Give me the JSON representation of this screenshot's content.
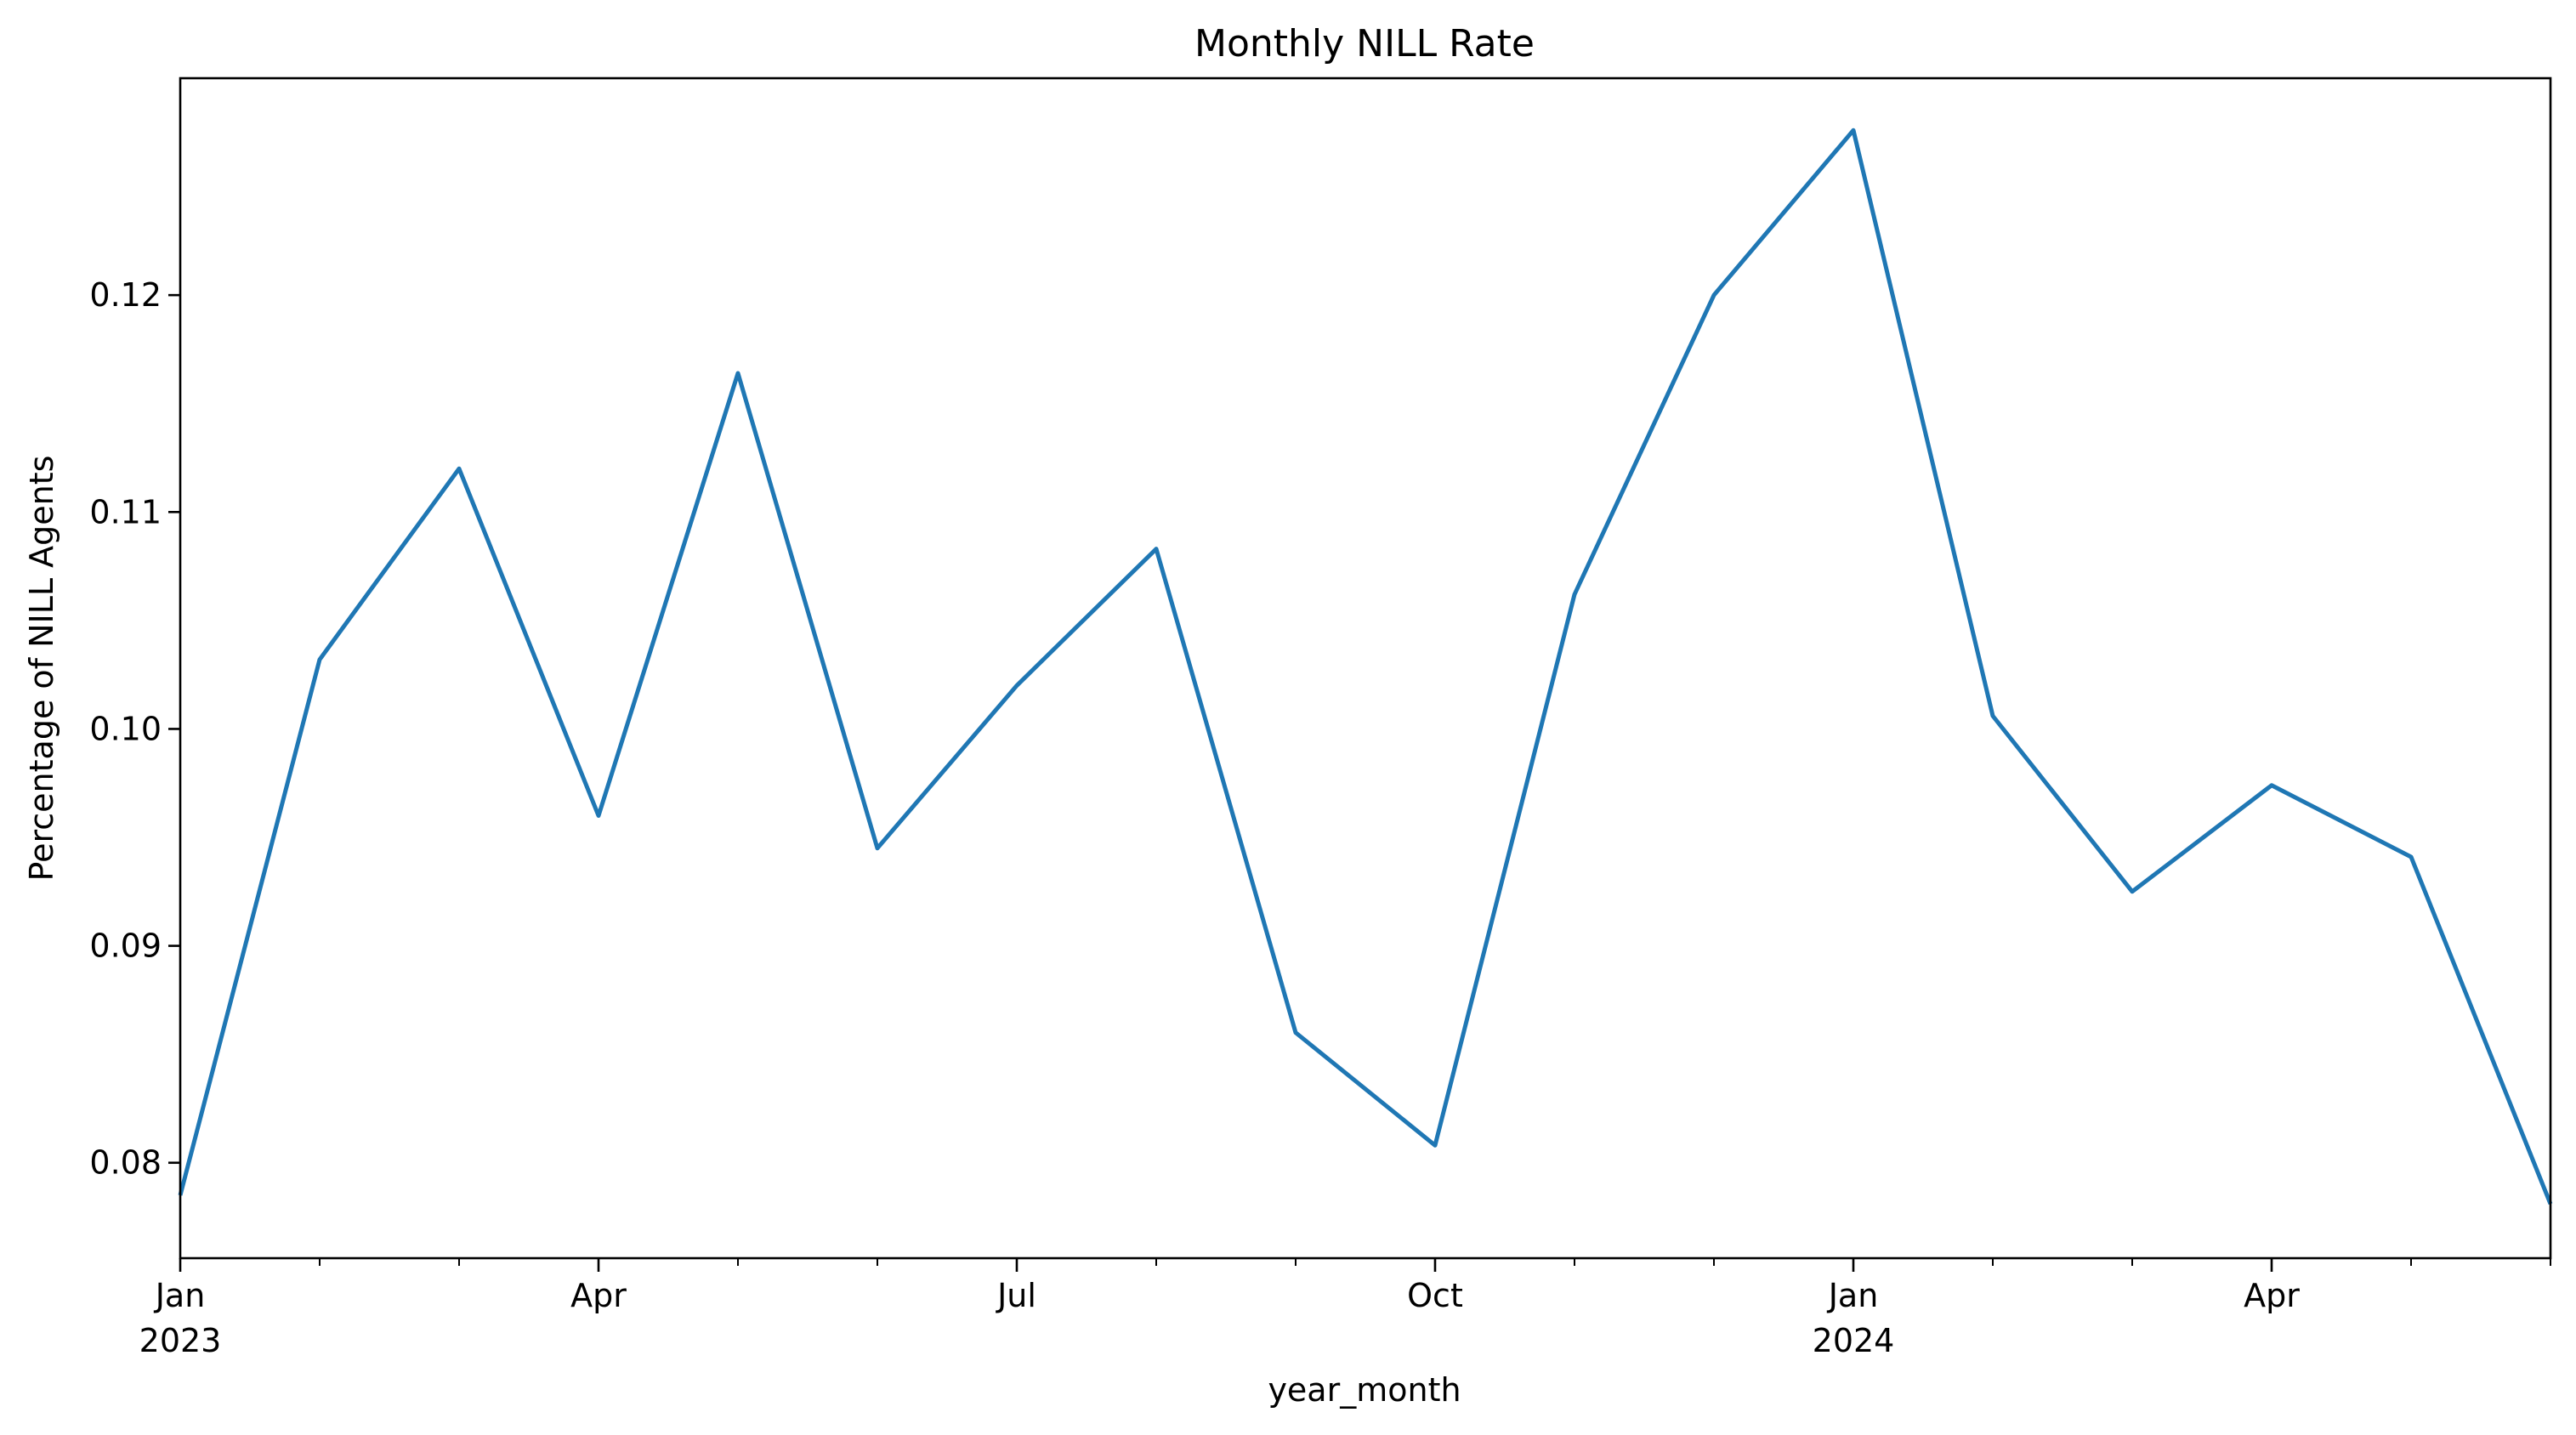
{
  "chart_data": {
    "type": "line",
    "title": "Monthly NILL Rate",
    "xlabel": "year_month",
    "ylabel": "Percentage of NILL Agents",
    "grid": false,
    "legend": null,
    "series": [
      {
        "name": "NILL rate",
        "color": "#1f77b4",
        "values": [
          0.0785,
          0.1032,
          0.112,
          0.096,
          0.1164,
          0.0945,
          0.102,
          0.1083,
          0.086,
          0.0808,
          0.1062,
          0.12,
          0.1276,
          0.1006,
          0.0925,
          0.0974,
          0.0941,
          0.0781
        ]
      }
    ],
    "x": [
      "2023-01",
      "2023-02",
      "2023-03",
      "2023-04",
      "2023-05",
      "2023-06",
      "2023-07",
      "2023-08",
      "2023-09",
      "2023-10",
      "2023-11",
      "2023-12",
      "2024-01",
      "2024-02",
      "2024-03",
      "2024-04",
      "2024-05",
      "2024-06"
    ],
    "xlim": [
      0,
      17
    ],
    "ylim": [
      0.0756,
      0.13
    ],
    "y_ticks": [
      {
        "value": 0.08,
        "label": "0.08"
      },
      {
        "value": 0.09,
        "label": "0.09"
      },
      {
        "value": 0.1,
        "label": "0.10"
      },
      {
        "value": 0.11,
        "label": "0.11"
      },
      {
        "value": 0.12,
        "label": "0.12"
      }
    ],
    "x_major_ticks": [
      {
        "index": 0,
        "label": "Jan",
        "sublabel": "2023"
      },
      {
        "index": 3,
        "label": "Apr",
        "sublabel": ""
      },
      {
        "index": 6,
        "label": "Jul",
        "sublabel": ""
      },
      {
        "index": 9,
        "label": "Oct",
        "sublabel": ""
      },
      {
        "index": 12,
        "label": "Jan",
        "sublabel": "2024"
      },
      {
        "index": 15,
        "label": "Apr",
        "sublabel": ""
      }
    ],
    "x_minor_ticks": [
      1,
      2,
      4,
      5,
      7,
      8,
      10,
      11,
      13,
      14,
      16,
      17
    ]
  }
}
